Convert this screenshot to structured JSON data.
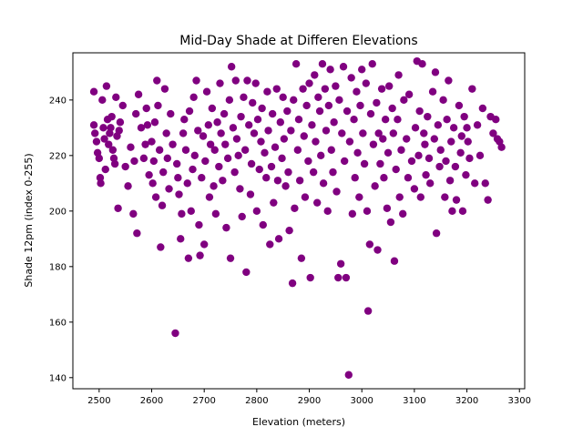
{
  "chart_data": {
    "type": "scatter",
    "title": "Mid-Day Shade at Differen Elevations",
    "xlabel": "Elevation (meters)",
    "ylabel": "Shade 12pm (index 0-255)",
    "xlim": [
      2450,
      3310
    ],
    "ylim": [
      136,
      257
    ],
    "xticks": [
      2500,
      2600,
      2700,
      2800,
      2900,
      3000,
      3100,
      3200,
      3300
    ],
    "yticks": [
      140,
      160,
      180,
      200,
      220,
      240
    ],
    "grid": false,
    "legend": "none",
    "color": "#800080",
    "series": [
      {
        "points": [
          [
            2490,
            243
          ],
          [
            2490,
            231
          ],
          [
            2492,
            228
          ],
          [
            2495,
            225
          ],
          [
            2497,
            221
          ],
          [
            2500,
            219
          ],
          [
            2502,
            212
          ],
          [
            2503,
            210
          ],
          [
            2506,
            240
          ],
          [
            2508,
            230
          ],
          [
            2510,
            226
          ],
          [
            2512,
            215
          ],
          [
            2514,
            245
          ],
          [
            2516,
            233
          ],
          [
            2518,
            224
          ],
          [
            2520,
            228
          ],
          [
            2522,
            230
          ],
          [
            2524,
            234
          ],
          [
            2526,
            222
          ],
          [
            2528,
            219
          ],
          [
            2530,
            217
          ],
          [
            2532,
            241
          ],
          [
            2534,
            227
          ],
          [
            2536,
            201
          ],
          [
            2538,
            229
          ],
          [
            2540,
            232
          ],
          [
            2545,
            238
          ],
          [
            2550,
            216
          ],
          [
            2555,
            209
          ],
          [
            2560,
            223
          ],
          [
            2565,
            199
          ],
          [
            2567,
            218
          ],
          [
            2570,
            235
          ],
          [
            2572,
            192
          ],
          [
            2575,
            242
          ],
          [
            2580,
            230
          ],
          [
            2585,
            219
          ],
          [
            2588,
            224
          ],
          [
            2590,
            237
          ],
          [
            2592,
            231
          ],
          [
            2595,
            213
          ],
          [
            2600,
            225
          ],
          [
            2602,
            210
          ],
          [
            2604,
            218
          ],
          [
            2606,
            232
          ],
          [
            2608,
            205
          ],
          [
            2610,
            247
          ],
          [
            2612,
            238
          ],
          [
            2615,
            222
          ],
          [
            2617,
            187
          ],
          [
            2620,
            202
          ],
          [
            2622,
            214
          ],
          [
            2625,
            244
          ],
          [
            2628,
            228
          ],
          [
            2630,
            219
          ],
          [
            2633,
            208
          ],
          [
            2636,
            235
          ],
          [
            2640,
            224
          ],
          [
            2645,
            156
          ],
          [
            2648,
            217
          ],
          [
            2650,
            212
          ],
          [
            2652,
            206
          ],
          [
            2655,
            190
          ],
          [
            2657,
            199
          ],
          [
            2660,
            228
          ],
          [
            2662,
            233
          ],
          [
            2665,
            222
          ],
          [
            2668,
            210
          ],
          [
            2670,
            183
          ],
          [
            2672,
            236
          ],
          [
            2675,
            200
          ],
          [
            2678,
            215
          ],
          [
            2680,
            241
          ],
          [
            2682,
            220
          ],
          [
            2685,
            247
          ],
          [
            2688,
            229
          ],
          [
            2690,
            195
          ],
          [
            2692,
            184
          ],
          [
            2695,
            212
          ],
          [
            2698,
            227
          ],
          [
            2700,
            188
          ],
          [
            2702,
            218
          ],
          [
            2705,
            243
          ],
          [
            2708,
            231
          ],
          [
            2710,
            205
          ],
          [
            2712,
            224
          ],
          [
            2715,
            237
          ],
          [
            2718,
            209
          ],
          [
            2720,
            222
          ],
          [
            2722,
            199
          ],
          [
            2725,
            232
          ],
          [
            2728,
            216
          ],
          [
            2730,
            246
          ],
          [
            2732,
            228
          ],
          [
            2735,
            211
          ],
          [
            2738,
            235
          ],
          [
            2740,
            224
          ],
          [
            2742,
            194
          ],
          [
            2745,
            219
          ],
          [
            2748,
            240
          ],
          [
            2750,
            183
          ],
          [
            2752,
            252
          ],
          [
            2755,
            230
          ],
          [
            2758,
            214
          ],
          [
            2760,
            247
          ],
          [
            2762,
            226
          ],
          [
            2765,
            220
          ],
          [
            2768,
            208
          ],
          [
            2770,
            234
          ],
          [
            2772,
            198
          ],
          [
            2775,
            241
          ],
          [
            2778,
            222
          ],
          [
            2780,
            178
          ],
          [
            2782,
            247
          ],
          [
            2785,
            231
          ],
          [
            2788,
            206
          ],
          [
            2790,
            217
          ],
          [
            2792,
            239
          ],
          [
            2795,
            228
          ],
          [
            2798,
            246
          ],
          [
            2800,
            200
          ],
          [
            2802,
            233
          ],
          [
            2805,
            215
          ],
          [
            2808,
            225
          ],
          [
            2810,
            237
          ],
          [
            2812,
            195
          ],
          [
            2815,
            221
          ],
          [
            2818,
            212
          ],
          [
            2820,
            243
          ],
          [
            2822,
            229
          ],
          [
            2825,
            188
          ],
          [
            2828,
            216
          ],
          [
            2830,
            235
          ],
          [
            2832,
            203
          ],
          [
            2835,
            223
          ],
          [
            2838,
            244
          ],
          [
            2840,
            211
          ],
          [
            2842,
            190
          ],
          [
            2845,
            232
          ],
          [
            2848,
            219
          ],
          [
            2850,
            241
          ],
          [
            2852,
            226
          ],
          [
            2855,
            209
          ],
          [
            2858,
            236
          ],
          [
            2860,
            214
          ],
          [
            2862,
            193
          ],
          [
            2865,
            229
          ],
          [
            2868,
            174
          ],
          [
            2870,
            240
          ],
          [
            2872,
            201
          ],
          [
            2875,
            253
          ],
          [
            2878,
            222
          ],
          [
            2880,
            233
          ],
          [
            2882,
            211
          ],
          [
            2885,
            183
          ],
          [
            2888,
            244
          ],
          [
            2890,
            227
          ],
          [
            2892,
            205
          ],
          [
            2895,
            238
          ],
          [
            2898,
            218
          ],
          [
            2900,
            246
          ],
          [
            2902,
            176
          ],
          [
            2905,
            231
          ],
          [
            2908,
            214
          ],
          [
            2910,
            249
          ],
          [
            2912,
            225
          ],
          [
            2915,
            203
          ],
          [
            2917,
            241
          ],
          [
            2920,
            236
          ],
          [
            2922,
            220
          ],
          [
            2925,
            253
          ],
          [
            2927,
            210
          ],
          [
            2930,
            244
          ],
          [
            2932,
            229
          ],
          [
            2935,
            200
          ],
          [
            2937,
            238
          ],
          [
            2940,
            251
          ],
          [
            2942,
            222
          ],
          [
            2945,
            214
          ],
          [
            2947,
            232
          ],
          [
            2950,
            245
          ],
          [
            2952,
            207
          ],
          [
            2955,
            176
          ],
          [
            2957,
            240
          ],
          [
            2960,
            181
          ],
          [
            2962,
            228
          ],
          [
            2965,
            252
          ],
          [
            2967,
            218
          ],
          [
            2970,
            176
          ],
          [
            2972,
            236
          ],
          [
            2975,
            141
          ],
          [
            2977,
            225
          ],
          [
            2980,
            248
          ],
          [
            2982,
            199
          ],
          [
            2985,
            233
          ],
          [
            2987,
            212
          ],
          [
            2990,
            243
          ],
          [
            2992,
            221
          ],
          [
            2995,
            205
          ],
          [
            2997,
            238
          ],
          [
            3000,
            251
          ],
          [
            3002,
            228
          ],
          [
            3005,
            217
          ],
          [
            3008,
            246
          ],
          [
            3010,
            200
          ],
          [
            3012,
            164
          ],
          [
            3015,
            188
          ],
          [
            3017,
            235
          ],
          [
            3020,
            253
          ],
          [
            3022,
            224
          ],
          [
            3025,
            209
          ],
          [
            3028,
            239
          ],
          [
            3030,
            186
          ],
          [
            3032,
            228
          ],
          [
            3035,
            217
          ],
          [
            3038,
            244
          ],
          [
            3040,
            226
          ],
          [
            3042,
            212
          ],
          [
            3045,
            233
          ],
          [
            3048,
            201
          ],
          [
            3050,
            221
          ],
          [
            3052,
            245
          ],
          [
            3055,
            196
          ],
          [
            3058,
            237
          ],
          [
            3060,
            228
          ],
          [
            3062,
            182
          ],
          [
            3065,
            215
          ],
          [
            3068,
            233
          ],
          [
            3070,
            249
          ],
          [
            3072,
            205
          ],
          [
            3075,
            222
          ],
          [
            3078,
            199
          ],
          [
            3080,
            240
          ],
          [
            3085,
            226
          ],
          [
            3088,
            212
          ],
          [
            3090,
            242
          ],
          [
            3095,
            218
          ],
          [
            3100,
            208
          ],
          [
            3102,
            230
          ],
          [
            3105,
            254
          ],
          [
            3108,
            220
          ],
          [
            3110,
            236
          ],
          [
            3112,
            205
          ],
          [
            3115,
            253
          ],
          [
            3118,
            228
          ],
          [
            3120,
            224
          ],
          [
            3122,
            213
          ],
          [
            3125,
            234
          ],
          [
            3128,
            219
          ],
          [
            3130,
            210
          ],
          [
            3135,
            243
          ],
          [
            3138,
            226
          ],
          [
            3140,
            250
          ],
          [
            3142,
            192
          ],
          [
            3145,
            231
          ],
          [
            3148,
            216
          ],
          [
            3150,
            222
          ],
          [
            3155,
            240
          ],
          [
            3158,
            205
          ],
          [
            3160,
            218
          ],
          [
            3162,
            233
          ],
          [
            3165,
            247
          ],
          [
            3168,
            211
          ],
          [
            3170,
            225
          ],
          [
            3172,
            200
          ],
          [
            3175,
            230
          ],
          [
            3178,
            216
          ],
          [
            3180,
            204
          ],
          [
            3185,
            238
          ],
          [
            3188,
            221
          ],
          [
            3190,
            227
          ],
          [
            3192,
            200
          ],
          [
            3195,
            234
          ],
          [
            3198,
            213
          ],
          [
            3200,
            230
          ],
          [
            3202,
            225
          ],
          [
            3205,
            219
          ],
          [
            3210,
            244
          ],
          [
            3215,
            210
          ],
          [
            3220,
            231
          ],
          [
            3225,
            220
          ],
          [
            3230,
            237
          ],
          [
            3235,
            210
          ],
          [
            3240,
            204
          ],
          [
            3245,
            234
          ],
          [
            3250,
            228
          ],
          [
            3255,
            233
          ],
          [
            3258,
            226
          ],
          [
            3262,
            225
          ],
          [
            3266,
            223
          ]
        ]
      }
    ]
  }
}
